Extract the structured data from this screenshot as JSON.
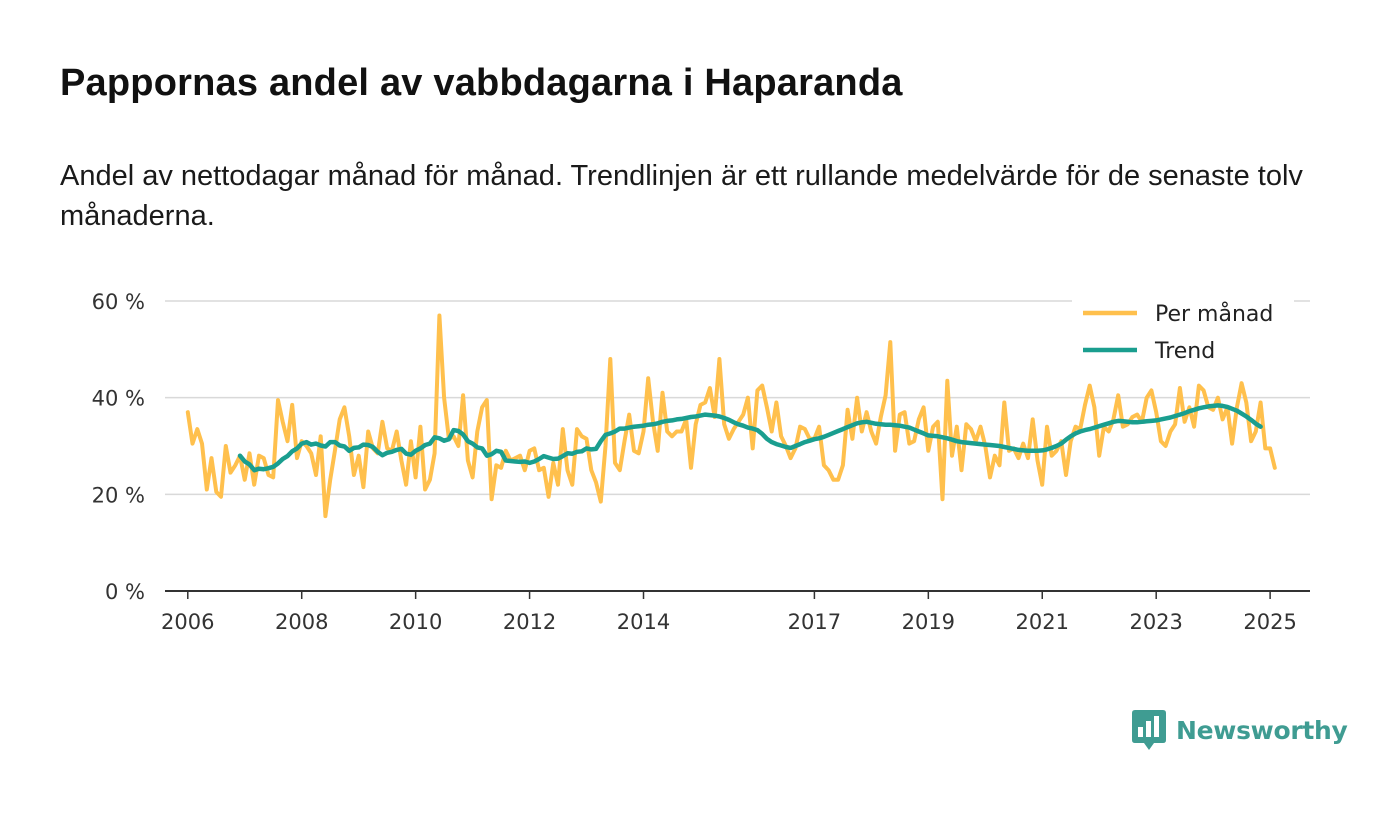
{
  "title": "Pappornas andel av vabbdagarna i Haparanda",
  "subtitle": "Andel av nettodagar månad för månad. Trendlinjen är ett rullande medelvärde för de senaste tolv månaderna.",
  "brand": {
    "name": "Newsworthy",
    "icon": "newsworthy-logo-icon",
    "color": "#3f9c92"
  },
  "chart_data": {
    "type": "line",
    "title": "Pappornas andel av vabbdagarna i Haparanda",
    "xlabel": "",
    "ylabel": "",
    "xlim": [
      2005.6,
      2025.7
    ],
    "ylim": [
      0,
      60
    ],
    "grid": true,
    "legend_position": "top-right",
    "y_ticks": [
      {
        "value": 0,
        "label": "0 %"
      },
      {
        "value": 20,
        "label": "20 %"
      },
      {
        "value": 40,
        "label": "40 %"
      },
      {
        "value": 60,
        "label": "60 %"
      }
    ],
    "x_ticks": [
      {
        "value": 2006,
        "label": "2006"
      },
      {
        "value": 2008,
        "label": "2008"
      },
      {
        "value": 2010,
        "label": "2010"
      },
      {
        "value": 2012,
        "label": "2012"
      },
      {
        "value": 2014,
        "label": "2014"
      },
      {
        "value": 2017,
        "label": "2017"
      },
      {
        "value": 2019,
        "label": "2019"
      },
      {
        "value": 2021,
        "label": "2021"
      },
      {
        "value": 2023,
        "label": "2023"
      },
      {
        "value": 2025,
        "label": "2025"
      }
    ],
    "series": [
      {
        "name": "Per månad",
        "color": "#ffc04d",
        "start": 2006.0,
        "step": 0.08333,
        "values": [
          37,
          30.5,
          33.5,
          30.5,
          21,
          27.5,
          20.5,
          19.5,
          30,
          24.5,
          26,
          28,
          23,
          28.5,
          22,
          28,
          27.5,
          24,
          23.5,
          39.5,
          35,
          31,
          38.5,
          27.5,
          31,
          30,
          28.5,
          24,
          32,
          15.5,
          23,
          29,
          35.5,
          38,
          32,
          24,
          28,
          21.5,
          33,
          29.5,
          28.5,
          35,
          29.5,
          29,
          33,
          27,
          22,
          31,
          23.5,
          34,
          21,
          23,
          28.5,
          57,
          40,
          31.5,
          32,
          30,
          40.5,
          27,
          23.5,
          33,
          38,
          39.5,
          19,
          26,
          25.5,
          29,
          27,
          27.5,
          28,
          25,
          29,
          29.5,
          25,
          25.5,
          19.5,
          26.5,
          22,
          33.5,
          25,
          22,
          33.5,
          32,
          31.5,
          25,
          22.5,
          18.5,
          30,
          48,
          26.5,
          25,
          31,
          36.5,
          29,
          28.5,
          33,
          44,
          35,
          29,
          41,
          33,
          32,
          33,
          33,
          35.5,
          25.5,
          34.5,
          38.5,
          39,
          42,
          36,
          48,
          34.5,
          31.5,
          33.5,
          35,
          36.5,
          40,
          29.5,
          41.5,
          42.5,
          38,
          33,
          39,
          32,
          30,
          27.5,
          29.5,
          34,
          33.5,
          31.5,
          31.5,
          34,
          26,
          25,
          23,
          23,
          26,
          37.5,
          31.5,
          40,
          33,
          37,
          33,
          30.5,
          36,
          40.5,
          51.5,
          29,
          36.5,
          37,
          30.5,
          31,
          35.5,
          38,
          29,
          34,
          35,
          19,
          43.5,
          28,
          34,
          25,
          34.5,
          33.5,
          31,
          34,
          30,
          23.5,
          28,
          26,
          39,
          29,
          29.5,
          27.5,
          30.5,
          27.5,
          35.5,
          27,
          22,
          34,
          28,
          29,
          31,
          24,
          31,
          34,
          33.5,
          38.5,
          42.5,
          38,
          28,
          34,
          33,
          35.5,
          40.5,
          34,
          34.5,
          36,
          36.5,
          35,
          40,
          41.5,
          37,
          31,
          30,
          33,
          34.5,
          42,
          35,
          38,
          34,
          42.5,
          41.5,
          38,
          37.5,
          40,
          35.5,
          38,
          30.5,
          38,
          43,
          39,
          31,
          33,
          39,
          29.5,
          29.5,
          25.5
        ]
      },
      {
        "name": "Trend",
        "color": "#1a9e8f",
        "start": 2006.917,
        "step": 0.08333,
        "values": [
          28,
          26.8,
          26.2,
          25,
          25.3,
          25.2,
          25.4,
          25.7,
          26.4,
          27.3,
          27.9,
          28.9,
          29.5,
          30.5,
          30.8,
          30.3,
          30.5,
          30.1,
          29.9,
          30.8,
          30.8,
          30.1,
          29.9,
          29,
          29.6,
          29.7,
          30.3,
          30.2,
          29.8,
          28.8,
          28.1,
          28.6,
          28.8,
          29.2,
          29.4,
          28.4,
          28.2,
          29,
          29.5,
          30.2,
          30.5,
          31.8,
          31.6,
          31.1,
          31.4,
          33.3,
          33.1,
          32.4,
          31,
          30.5,
          29.7,
          29.5,
          28,
          28.3,
          29,
          28.8,
          27,
          26.9,
          26.8,
          26.7,
          26.8,
          26.5,
          26.8,
          27.3,
          27.9,
          27.6,
          27.3,
          27.4,
          27.9,
          28.5,
          28.4,
          28.8,
          28.9,
          29.5,
          29.3,
          29.4,
          31,
          32.3,
          32.6,
          33,
          33.6,
          33.6,
          33.8,
          34,
          34.1,
          34.2,
          34.4,
          34.5,
          34.7,
          35,
          35.2,
          35.3,
          35.5,
          35.6,
          35.8,
          36,
          36.1,
          36.3,
          36.5,
          36.4,
          36.3,
          36.1,
          35.8,
          35.4,
          34.9,
          34.5,
          34.2,
          33.8,
          33.6,
          33.3,
          32.5,
          31.5,
          30.8,
          30.4,
          30.1,
          29.8,
          29.6,
          30,
          30.4,
          30.8,
          31.1,
          31.4,
          31.6,
          31.9,
          32.3,
          32.7,
          33.1,
          33.5,
          33.9,
          34.3,
          34.7,
          34.9,
          35,
          34.8,
          34.6,
          34.5,
          34.4,
          34.4,
          34.3,
          34.2,
          34,
          33.8,
          33.4,
          33,
          32.6,
          32.2,
          32.1,
          32,
          31.8,
          31.6,
          31.3,
          31,
          30.8,
          30.7,
          30.6,
          30.5,
          30.4,
          30.3,
          30.2,
          30.1,
          30,
          29.8,
          29.6,
          29.4,
          29.2,
          29.1,
          29,
          29,
          29,
          29.1,
          29.3,
          29.6,
          30,
          30.5,
          31.3,
          32,
          32.6,
          33,
          33.3,
          33.5,
          33.8,
          34.1,
          34.4,
          34.7,
          35,
          35.2,
          35.1,
          35,
          34.9,
          34.9,
          35,
          35.1,
          35.2,
          35.3,
          35.5,
          35.7,
          35.9,
          36.2,
          36.5,
          36.8,
          37.2,
          37.5,
          37.8,
          38,
          38.2,
          38.3,
          38.4,
          38.3,
          38.1,
          37.7,
          37.3,
          36.7,
          36.1,
          35.4,
          34.6,
          34
        ]
      }
    ]
  }
}
